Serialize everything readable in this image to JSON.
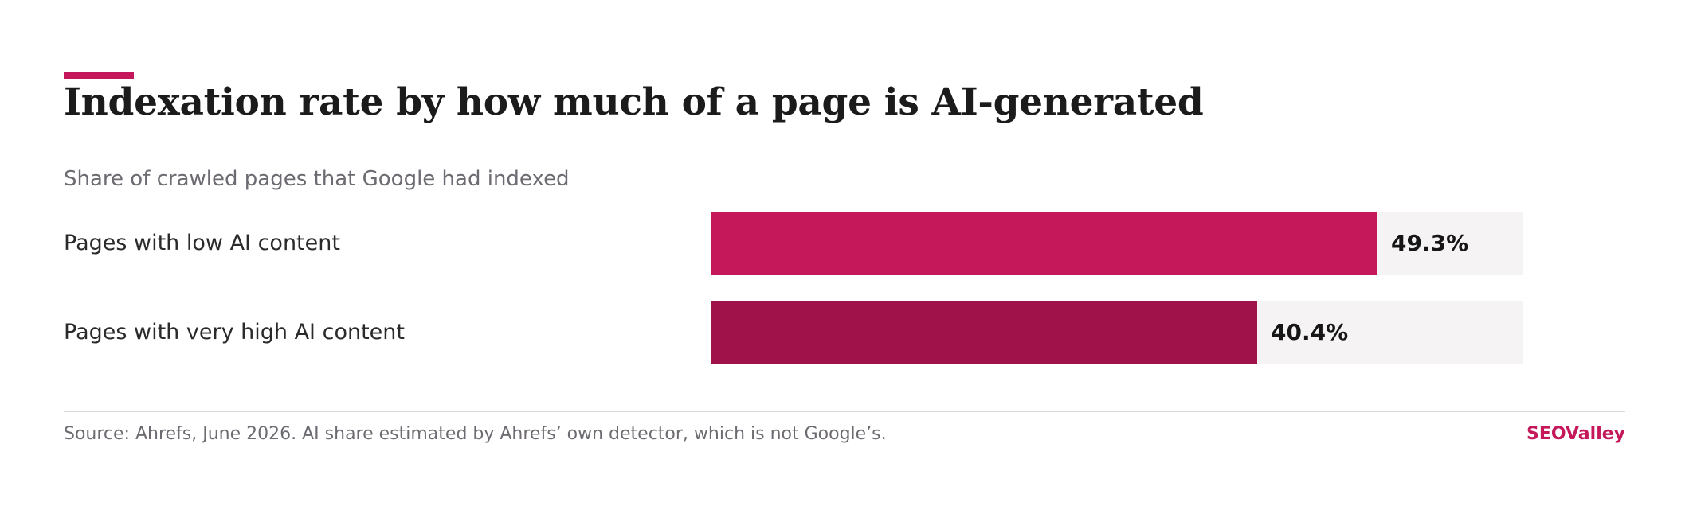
{
  "chart": {
    "title": "Indexation rate by how much of a page is AI-generated",
    "subtitle": "Share of crawled pages that Google had indexed",
    "source": "Source: Ahrefs, June 2026. AI share estimated by Ahrefs’ own detector, which is not Google’s.",
    "brand": "SEOValley"
  },
  "colors": {
    "accent": "#c4185a",
    "bar_low": "#c4185a",
    "bar_high": "#a0134a",
    "track": "#f5f3f4"
  },
  "chart_data": {
    "type": "bar",
    "orientation": "horizontal",
    "title": "Indexation rate by how much of a page is AI-generated",
    "subtitle": "Share of crawled pages that Google had indexed",
    "categories": [
      "Pages with low AI content",
      "Pages with very high AI content"
    ],
    "values": [
      49.3,
      40.4
    ],
    "value_labels": [
      "49.3%",
      "40.4%"
    ],
    "unit": "%",
    "xlim": [
      0,
      100
    ],
    "grid": false,
    "legend": "none"
  }
}
